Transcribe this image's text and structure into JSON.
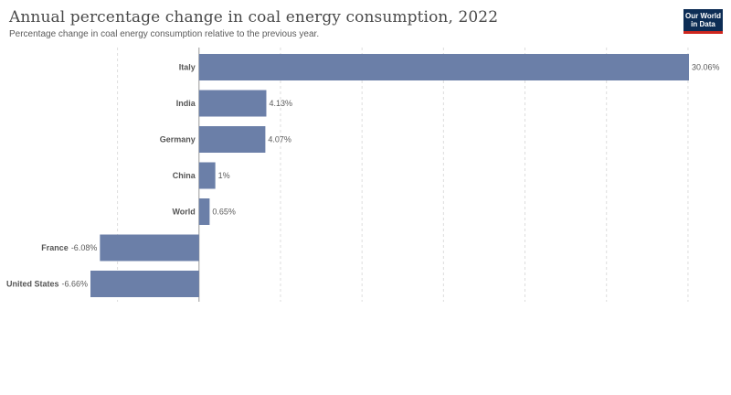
{
  "header": {
    "title": "Annual percentage change in coal energy consumption, 2022",
    "subtitle": "Percentage change in coal energy consumption relative to the previous year."
  },
  "logo": {
    "line1": "Our World",
    "line2": "in Data",
    "bg_color": "#0d2d55",
    "accent_color": "#ce261e"
  },
  "chart_data": {
    "type": "bar",
    "orientation": "horizontal",
    "categories": [
      "Italy",
      "India",
      "Germany",
      "China",
      "World",
      "France",
      "United States"
    ],
    "values": [
      30.06,
      4.13,
      4.07,
      1,
      0.65,
      -6.08,
      -6.66
    ],
    "value_labels": [
      "30.06%",
      "4.13%",
      "4.07%",
      "1%",
      "0.65%",
      "-6.08%",
      "-6.66%"
    ],
    "unit": "%",
    "xlim": [
      -6.66,
      30.06
    ],
    "grid_step": 5,
    "grid": true,
    "bar_color": "#6b7fa8"
  }
}
